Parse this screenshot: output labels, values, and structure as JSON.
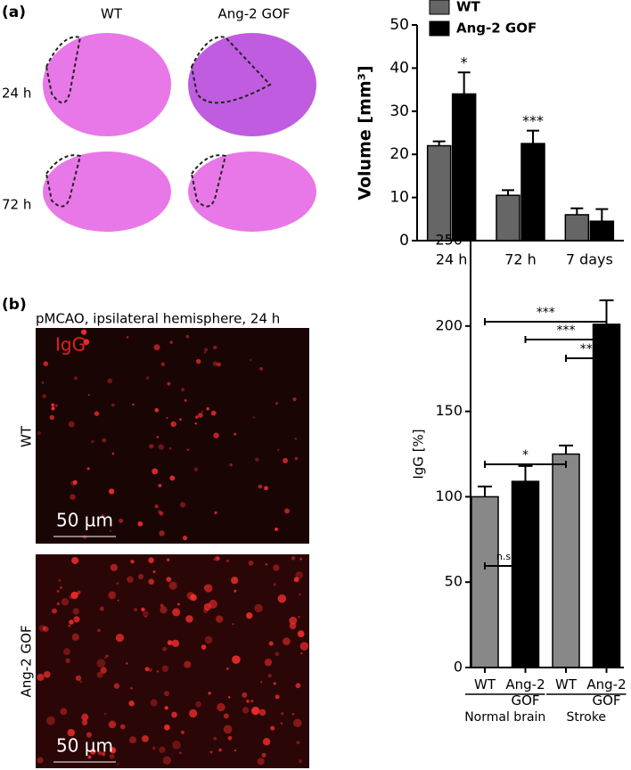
{
  "panels": {
    "a": {
      "label": "(a)",
      "columns": [
        "WT",
        "Ang-2 GOF"
      ],
      "rows": [
        "24 h",
        "72 h"
      ]
    },
    "b": {
      "label": "(b)",
      "caption": "pMCAO, ipsilateral hemisphere, 24 h",
      "stain": "IgG",
      "rows": [
        "WT",
        "Ang-2 GOF"
      ],
      "scale_bar": "50 µm"
    }
  },
  "chart_data": [
    {
      "type": "grouped-bar",
      "ylabel": "Volume [mm³]",
      "categories": [
        "24 h",
        "72 h",
        "7 days"
      ],
      "series": [
        {
          "name": "WT",
          "color": "#666666",
          "values": [
            22,
            10.5,
            6
          ],
          "errors": [
            1,
            1.2,
            1.5
          ]
        },
        {
          "name": "Ang-2 GOF",
          "color": "#000000",
          "values": [
            34,
            22.5,
            4.5
          ],
          "errors": [
            5,
            3,
            2.8
          ]
        }
      ],
      "significance": [
        "*",
        "***",
        null
      ],
      "ylim": [
        0,
        50
      ],
      "yticks": [
        0,
        10,
        20,
        30,
        40,
        50
      ],
      "legend": "top-left"
    },
    {
      "type": "bar",
      "ylabel": "IgG [%]",
      "categories": [
        "WT",
        "Ang-2 GOF",
        "WT",
        "Ang-2 GOF"
      ],
      "values": [
        100,
        109,
        125,
        201
      ],
      "errors": [
        6,
        9,
        5,
        14
      ],
      "colors": [
        "#888888",
        "#000000",
        "#888888",
        "#000000"
      ],
      "groups": [
        {
          "name": "Normal brain",
          "start": 0,
          "end": 1
        },
        {
          "name": "Stroke",
          "start": 2,
          "end": 3
        }
      ],
      "brackets": [
        {
          "from": 0,
          "to": 1,
          "label": "n.s."
        },
        {
          "from": 0,
          "to": 2,
          "label": "*"
        },
        {
          "from": 2,
          "to": 3,
          "label": "**"
        },
        {
          "from": 1,
          "to": 3,
          "label": "***"
        },
        {
          "from": 0,
          "to": 3,
          "label": "***"
        }
      ],
      "ylim": [
        0,
        250
      ],
      "yticks": [
        0,
        50,
        100,
        150,
        200,
        250
      ]
    }
  ]
}
